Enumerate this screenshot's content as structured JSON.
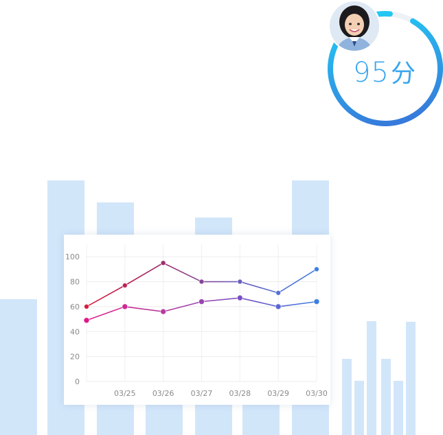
{
  "score": {
    "value": "95",
    "unit": "分",
    "ring_fraction": 0.93,
    "ring_colors": [
      "#1fd8f8",
      "#3a6ad6"
    ],
    "text_color": "#3aa7ee"
  },
  "avatar": {
    "icon": "student-portrait-icon"
  },
  "background_bars": {
    "color": "#d2e6fa"
  },
  "chart_data": {
    "type": "line",
    "x": [
      "",
      "03/25",
      "03/26",
      "03/27",
      "03/28",
      "03/29",
      "03/30"
    ],
    "y_ticks": [
      "0",
      "20",
      "40",
      "60",
      "80",
      "100"
    ],
    "ylim": [
      0,
      110
    ],
    "grid": true,
    "series": [
      {
        "values": [
          60,
          77,
          95,
          80,
          80,
          71,
          90
        ],
        "colors": [
          "#d81b3a",
          "#9b2d6e",
          "#6a5fbd",
          "#3d7fe0"
        ]
      },
      {
        "values": [
          49,
          60,
          56,
          64,
          67,
          60,
          64
        ],
        "colors": [
          "#e0178a",
          "#b53b9e",
          "#7a4fc4",
          "#3d7fe0"
        ]
      }
    ]
  }
}
